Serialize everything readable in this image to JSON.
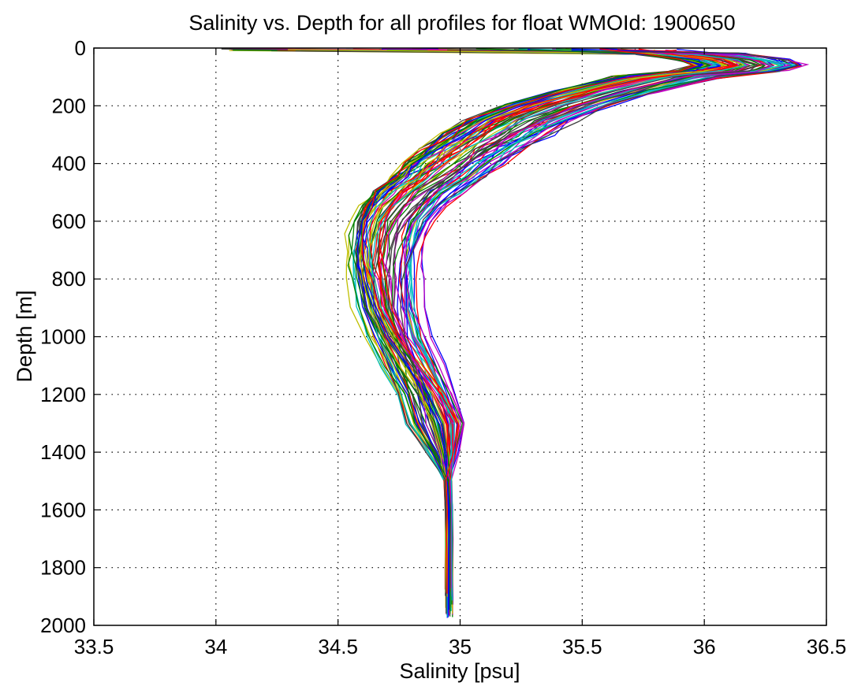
{
  "chart_data": {
    "type": "line",
    "title": "Salinity vs. Depth for all profiles for float WMOId: 1900650",
    "xlabel": "Salinity [psu]",
    "ylabel": "Depth [m]",
    "xlim": [
      33.5,
      36.5
    ],
    "ylim": [
      0,
      2000
    ],
    "y_reversed": true,
    "grid": true,
    "legend": "none",
    "x_ticks": [
      "33.5",
      "34",
      "34.5",
      "35",
      "35.5",
      "36",
      "36.5"
    ],
    "y_ticks": [
      "0",
      "200",
      "400",
      "600",
      "800",
      "1000",
      "1200",
      "1400",
      "1600",
      "1800",
      "2000"
    ],
    "profile_count": 80,
    "colors": [
      "#0000ff",
      "#008000",
      "#ff0000",
      "#00bfbf",
      "#bf00bf",
      "#bfbf00",
      "#404040"
    ],
    "reference_profile": {
      "depth": [
        5,
        20,
        40,
        60,
        80,
        100,
        150,
        200,
        250,
        300,
        350,
        400,
        450,
        500,
        550,
        600,
        650,
        700,
        750,
        800,
        900,
        1000,
        1100,
        1200,
        1300,
        1400,
        1500,
        1600,
        1700,
        1800,
        1900,
        1975
      ],
      "salinity": [
        35.85,
        35.95,
        36.12,
        36.18,
        36.1,
        35.85,
        35.6,
        35.4,
        35.25,
        35.15,
        35.05,
        34.97,
        34.9,
        34.82,
        34.76,
        34.72,
        34.7,
        34.69,
        34.685,
        34.69,
        34.7,
        34.74,
        34.8,
        34.86,
        34.9,
        34.93,
        34.95,
        34.955,
        34.955,
        34.955,
        34.955,
        34.955
      ]
    }
  }
}
